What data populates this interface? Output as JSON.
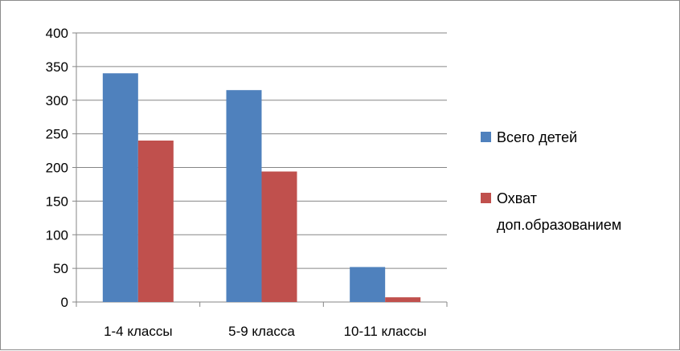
{
  "chart_data": {
    "type": "bar",
    "categories": [
      "1-4 классы",
      "5-9 класса",
      "10-11 классы"
    ],
    "series": [
      {
        "name": "Всего детей",
        "values": [
          340,
          315,
          52
        ],
        "color": "#4F81BD"
      },
      {
        "name": "Охват доп.образованием",
        "values": [
          240,
          194,
          7
        ],
        "color": "#C0504D"
      }
    ],
    "ylim": [
      0,
      400
    ],
    "yticks": [
      0,
      50,
      100,
      150,
      200,
      250,
      300,
      350,
      400
    ],
    "grid": true,
    "legend": "right",
    "legend_lines": [
      [
        "Всего детей"
      ],
      [
        "Охват",
        "доп.образованием"
      ]
    ]
  }
}
